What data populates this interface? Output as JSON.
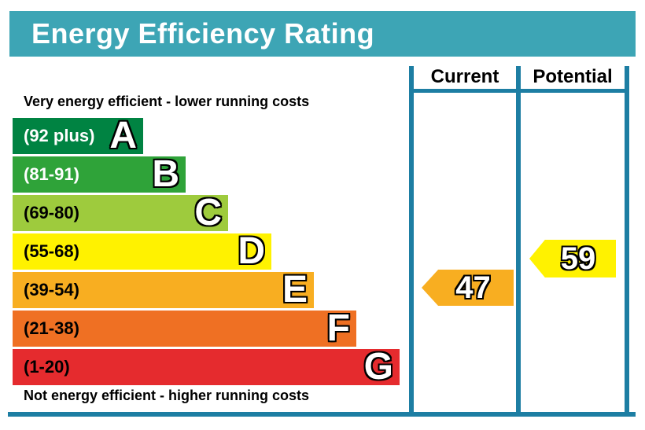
{
  "title": "Energy Efficiency Rating",
  "table": {
    "current_header": "Current",
    "potential_header": "Potential"
  },
  "captions": {
    "top": "Very energy efficient - lower running costs",
    "bottom": "Not energy efficient - higher running costs"
  },
  "colors": {
    "title_bar": "#3DA5B5",
    "title_text": "#FFFFFF",
    "table_border": "#1D7EA3",
    "header_text": "#000000"
  },
  "chart_data": {
    "type": "bar",
    "variant": "uk-epc-energy-efficiency-rating",
    "title": "Energy Efficiency Rating",
    "legend_position": "right-columns",
    "bands": [
      {
        "letter": "A",
        "range_label": "(92 plus)",
        "min": 92,
        "max": 100,
        "color": "#008342",
        "label_color": "#FFFFFF"
      },
      {
        "letter": "B",
        "range_label": "(81-91)",
        "min": 81,
        "max": 91,
        "color": "#2FA339",
        "label_color": "#FFFFFF"
      },
      {
        "letter": "C",
        "range_label": "(69-80)",
        "min": 69,
        "max": 80,
        "color": "#9ECB3D",
        "label_color": "#000000"
      },
      {
        "letter": "D",
        "range_label": "(55-68)",
        "min": 55,
        "max": 68,
        "color": "#FFF200",
        "label_color": "#000000"
      },
      {
        "letter": "E",
        "range_label": "(39-54)",
        "min": 39,
        "max": 54,
        "color": "#F8AE21",
        "label_color": "#000000"
      },
      {
        "letter": "F",
        "range_label": "(21-38)",
        "min": 21,
        "max": 38,
        "color": "#EF7023",
        "label_color": "#000000"
      },
      {
        "letter": "G",
        "range_label": "(1-20)",
        "min": 1,
        "max": 20,
        "color": "#E52B2E",
        "label_color": "#000000"
      }
    ],
    "current": {
      "value": "47",
      "band": "E",
      "arrow_color": "#F8AE21"
    },
    "potential": {
      "value": "59",
      "band": "D",
      "arrow_color": "#FFF200"
    }
  }
}
